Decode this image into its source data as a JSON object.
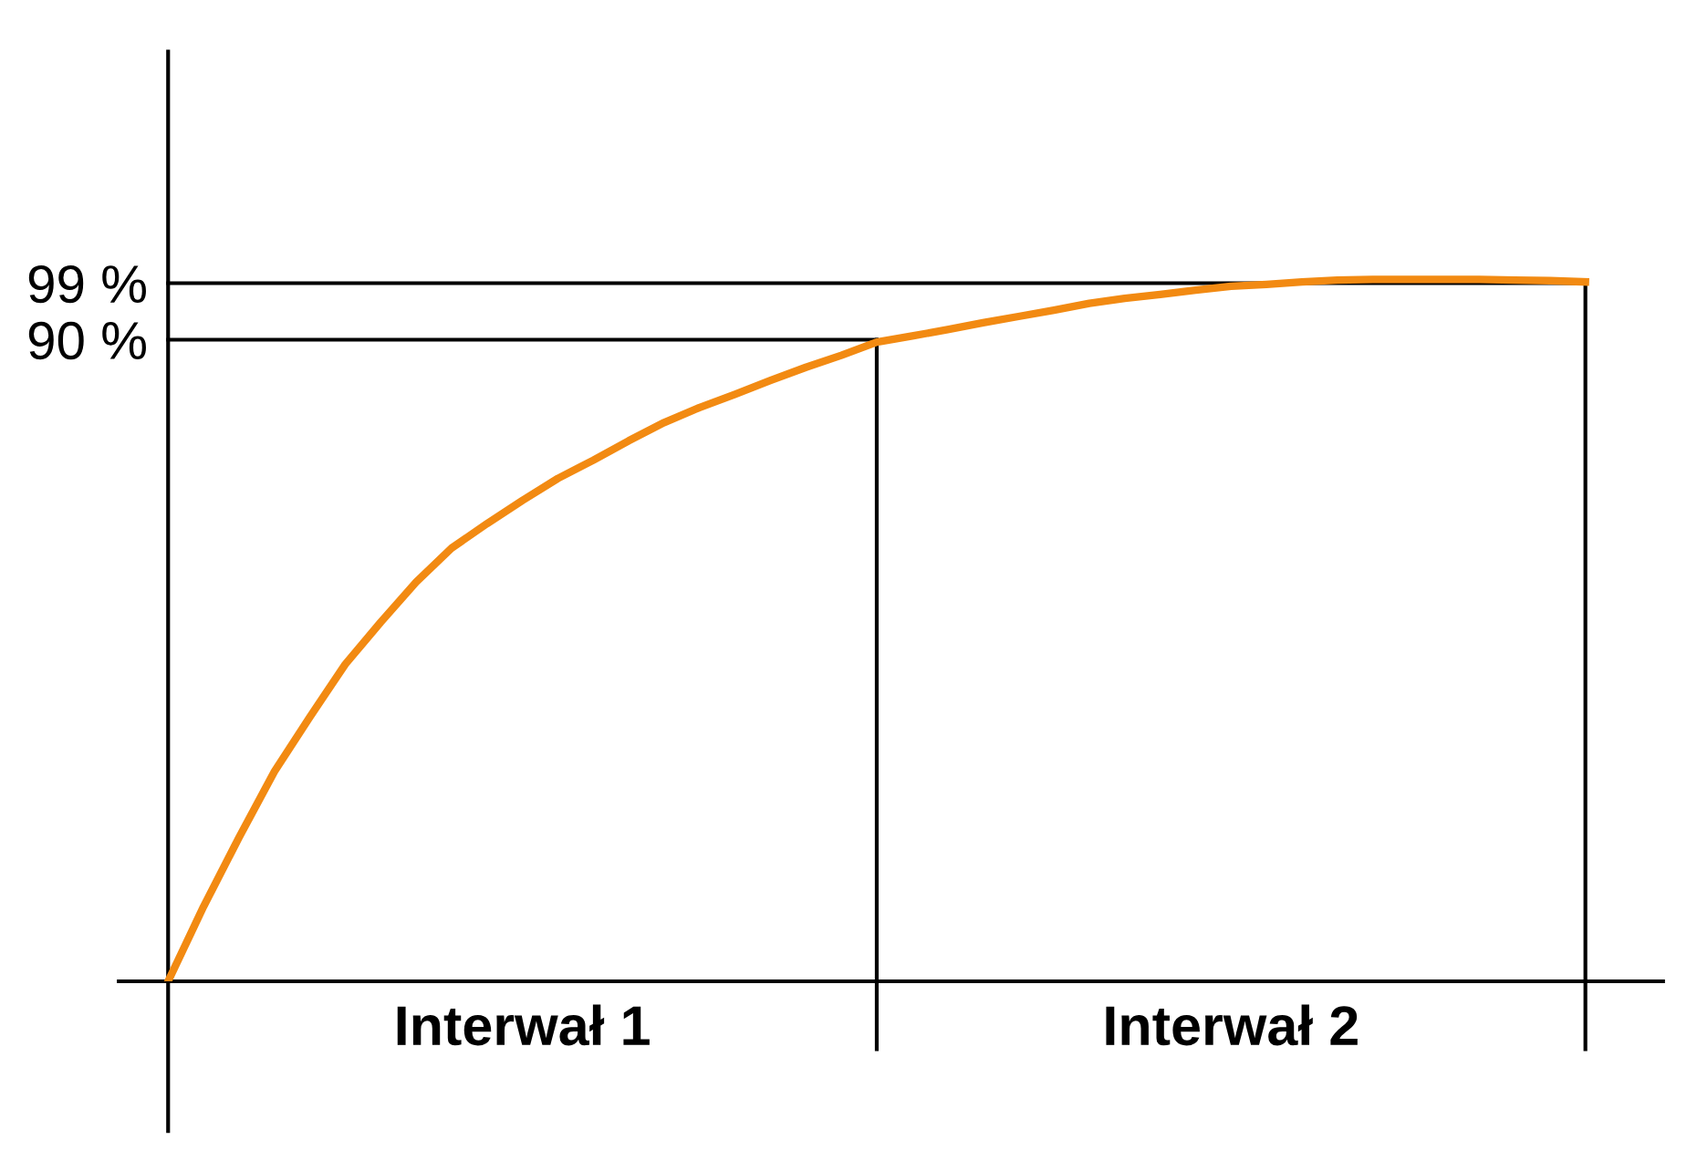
{
  "chart_data": {
    "type": "line",
    "categories": [
      null,
      null,
      null,
      null,
      null,
      null,
      null,
      null,
      null,
      null,
      null,
      null,
      null,
      null,
      null,
      null,
      null,
      null,
      null,
      null,
      null,
      null,
      null,
      null,
      null,
      null,
      null,
      null,
      null,
      null,
      null,
      null,
      null,
      null,
      null,
      null,
      null,
      null,
      null,
      null,
      null
    ],
    "series": [
      {
        "color": "#f28a12",
        "values": [
          -12.2,
          -0.3,
          10.7,
          21.2,
          29.9,
          38.3,
          45.0,
          51.4,
          56.8,
          60.7,
          64.4,
          67.9,
          70.8,
          73.9,
          76.8,
          79.2,
          81.3,
          83.5,
          85.6,
          87.5,
          89.6,
          90.6,
          91.6,
          92.7,
          93.7,
          94.7,
          95.8,
          96.6,
          97.2,
          97.9,
          98.5,
          98.8,
          99.2,
          99.5,
          99.6,
          99.6,
          99.6,
          99.6,
          99.5,
          99.4,
          99.2
        ]
      }
    ],
    "ylim": [
      -12.2,
      135.9
    ],
    "yticks": [
      {
        "value": 90,
        "label": "90 %"
      },
      {
        "value": 99,
        "label": "99 %"
      }
    ],
    "annotations": [
      "Interwał 1",
      "Interwał 2"
    ],
    "ref_lines": [
      {
        "axis": "y",
        "value": 90,
        "color": "#000000"
      },
      {
        "axis": "y",
        "value": 99,
        "color": "#000000"
      }
    ],
    "grid": false,
    "marker": "none",
    "line_style": "solid"
  }
}
